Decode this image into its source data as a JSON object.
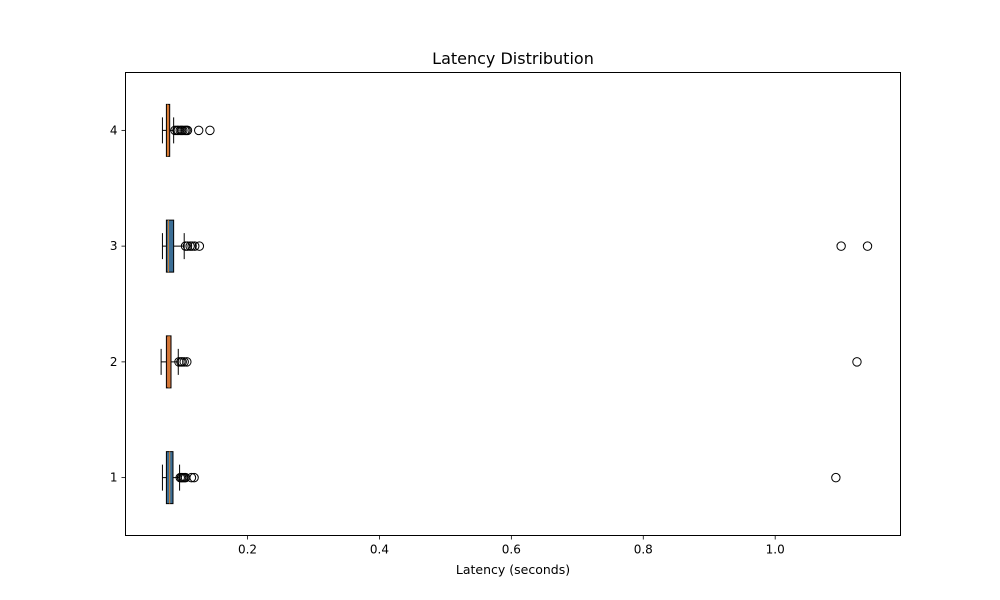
{
  "chart_data": {
    "type": "boxplot",
    "orientation": "horizontal",
    "title": "Latency Distribution",
    "xlabel": "Latency (seconds)",
    "ylabel": "",
    "xlim": [
      0.015,
      1.19
    ],
    "ylim": [
      0.5,
      4.5
    ],
    "xticks": [
      0.2,
      0.4,
      0.6,
      0.8,
      1.0
    ],
    "xtick_labels": [
      "0.2",
      "0.4",
      "0.6",
      "0.8",
      "1.0"
    ],
    "grid": false,
    "legend": "none",
    "box_colors": {
      "1": "#3b6e96",
      "2": "#d0703e",
      "3": "#3b6e96",
      "4": "#d0703e"
    },
    "boxes": [
      {
        "label": "1",
        "pos": 1,
        "whislo": 0.071,
        "q1": 0.077,
        "med": 0.082,
        "q3": 0.087,
        "whishi": 0.097,
        "fliers": [
          0.098,
          0.1,
          0.102,
          0.104,
          0.106,
          0.115,
          0.119,
          1.092
        ]
      },
      {
        "label": "2",
        "pos": 2,
        "whislo": 0.069,
        "q1": 0.077,
        "med": 0.081,
        "q3": 0.084,
        "whishi": 0.095,
        "fliers": [
          0.096,
          0.099,
          0.101,
          0.104,
          0.108,
          1.124
        ]
      },
      {
        "label": "3",
        "pos": 3,
        "whislo": 0.071,
        "q1": 0.077,
        "med": 0.08,
        "q3": 0.088,
        "whishi": 0.104,
        "fliers": [
          0.106,
          0.109,
          0.113,
          0.116,
          0.12,
          0.127,
          1.1,
          1.14
        ]
      },
      {
        "label": "4",
        "pos": 4,
        "whislo": 0.071,
        "q1": 0.077,
        "med": 0.079,
        "q3": 0.082,
        "whishi": 0.088,
        "fliers": [
          0.09,
          0.093,
          0.095,
          0.098,
          0.1,
          0.102,
          0.105,
          0.107,
          0.109,
          0.126,
          0.143
        ]
      }
    ]
  }
}
